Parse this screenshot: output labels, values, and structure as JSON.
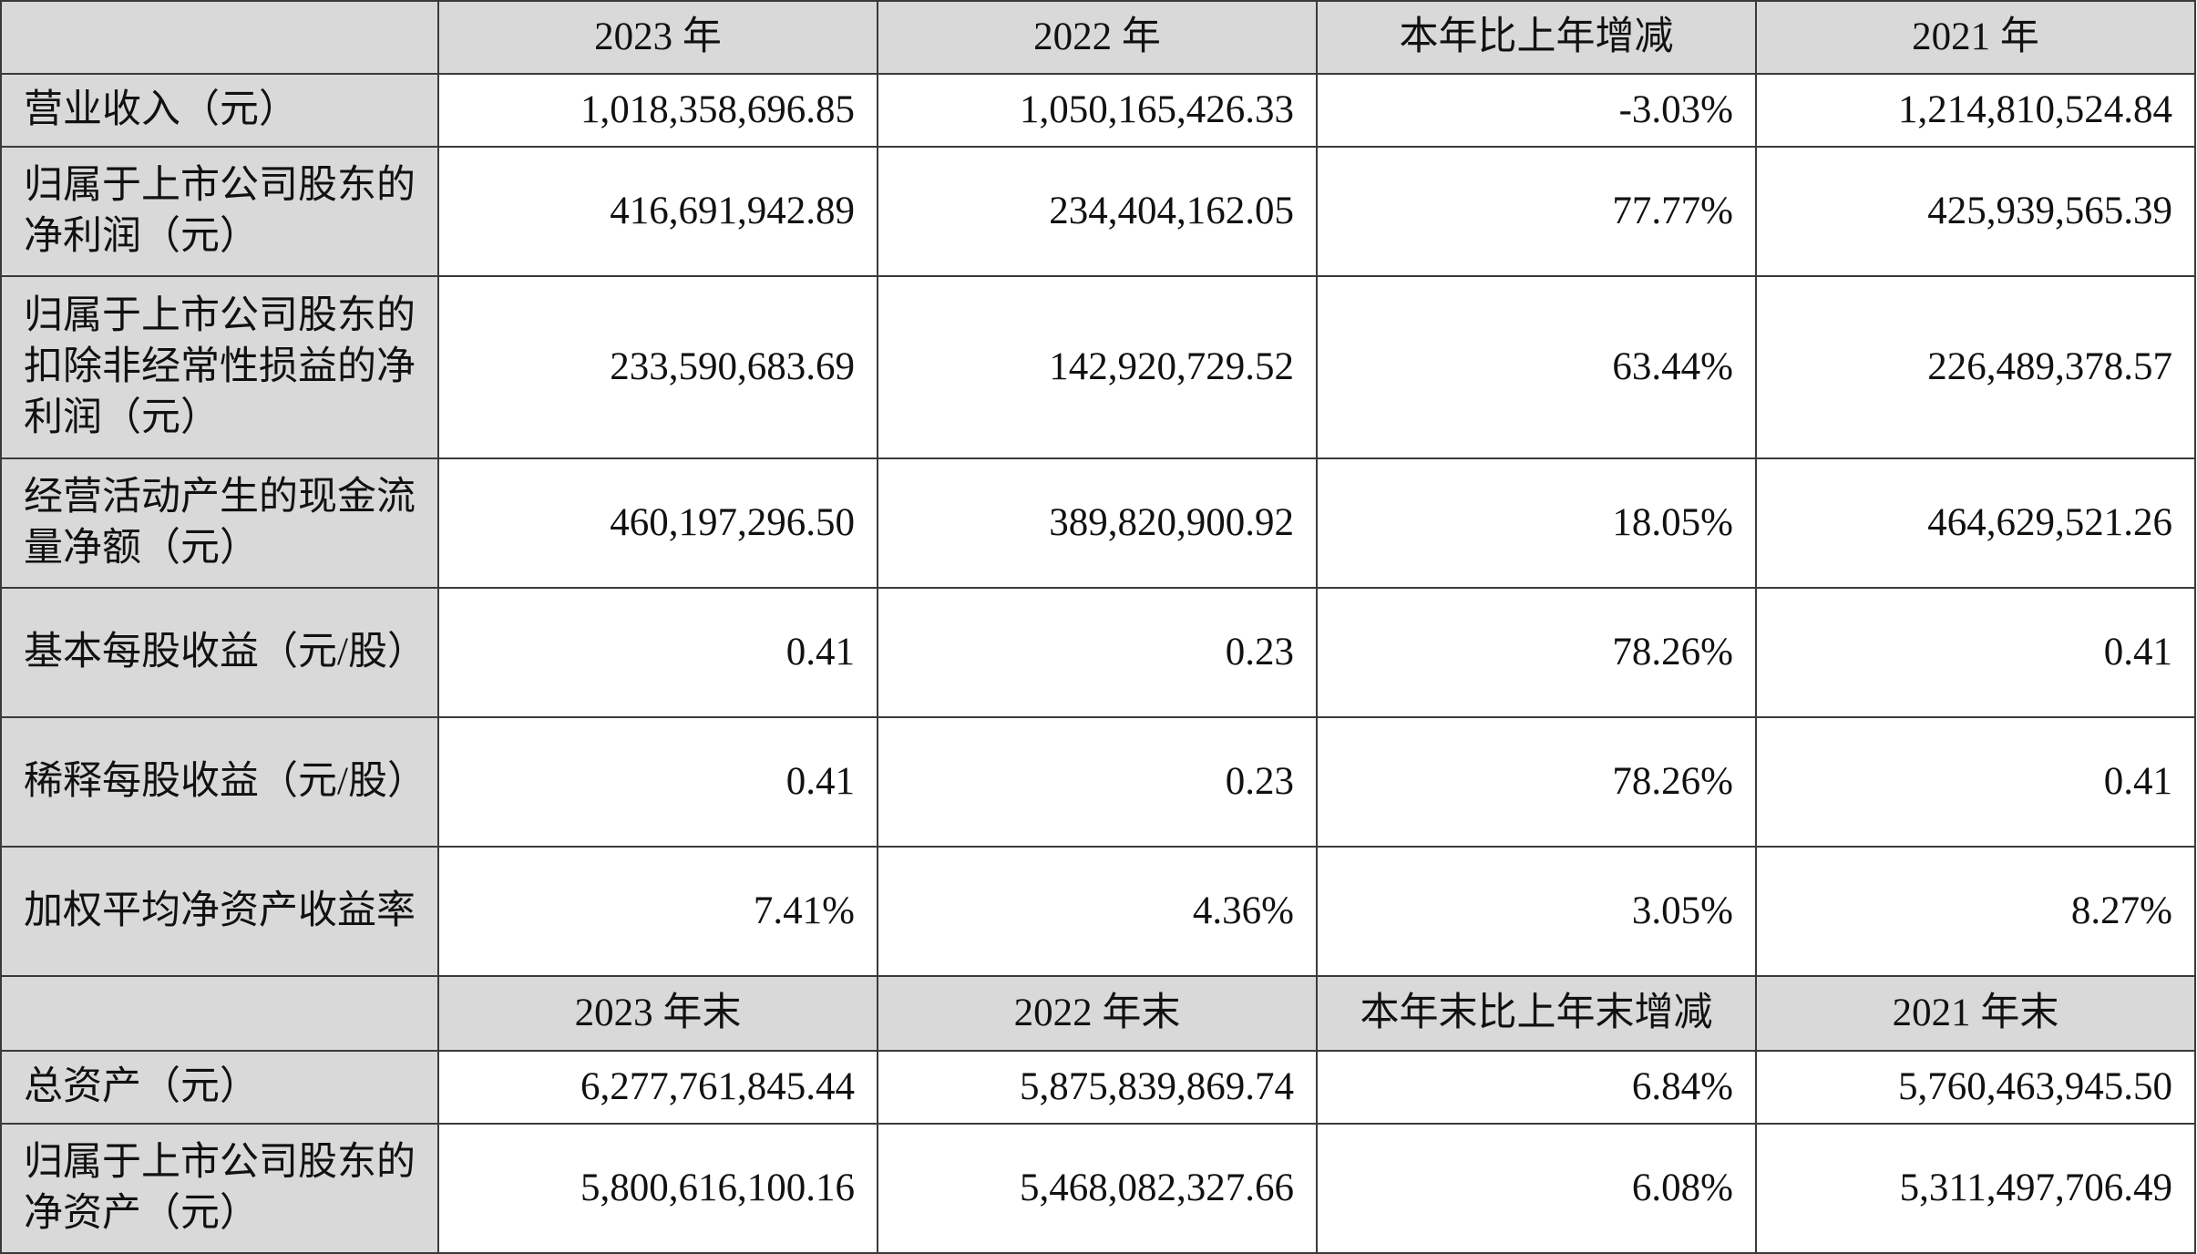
{
  "header1": [
    "",
    "2023 年",
    "2022 年",
    "本年比上年增减",
    "2021 年"
  ],
  "rows1": [
    {
      "label": "营业收入（元）",
      "v2023": "1,018,358,696.85",
      "v2022": "1,050,165,426.33",
      "change": "-3.03%",
      "v2021": "1,214,810,524.84"
    },
    {
      "label": "归属于上市公司股东的净利润（元）",
      "v2023": "416,691,942.89",
      "v2022": "234,404,162.05",
      "change": "77.77%",
      "v2021": "425,939,565.39"
    },
    {
      "label": "归属于上市公司股东的扣除非经常性损益的净利润（元）",
      "v2023": "233,590,683.69",
      "v2022": "142,920,729.52",
      "change": "63.44%",
      "v2021": "226,489,378.57"
    },
    {
      "label": "经营活动产生的现金流量净额（元）",
      "v2023": "460,197,296.50",
      "v2022": "389,820,900.92",
      "change": "18.05%",
      "v2021": "464,629,521.26"
    },
    {
      "label": "基本每股收益（元/股）",
      "v2023": "0.41",
      "v2022": "0.23",
      "change": "78.26%",
      "v2021": "0.41"
    },
    {
      "label": "稀释每股收益（元/股）",
      "v2023": "0.41",
      "v2022": "0.23",
      "change": "78.26%",
      "v2021": "0.41"
    },
    {
      "label": "加权平均净资产收益率",
      "v2023": "7.41%",
      "v2022": "4.36%",
      "change": "3.05%",
      "v2021": "8.27%"
    }
  ],
  "header2": [
    "",
    "2023 年末",
    "2022 年末",
    "本年末比上年末增减",
    "2021 年末"
  ],
  "rows2": [
    {
      "label": "总资产（元）",
      "v2023": "6,277,761,845.44",
      "v2022": "5,875,839,869.74",
      "change": "6.84%",
      "v2021": "5,760,463,945.50"
    },
    {
      "label": "归属于上市公司股东的净资产（元）",
      "v2023": "5,800,616,100.16",
      "v2022": "5,468,082,327.66",
      "change": "6.08%",
      "v2021": "5,311,497,706.49"
    }
  ]
}
